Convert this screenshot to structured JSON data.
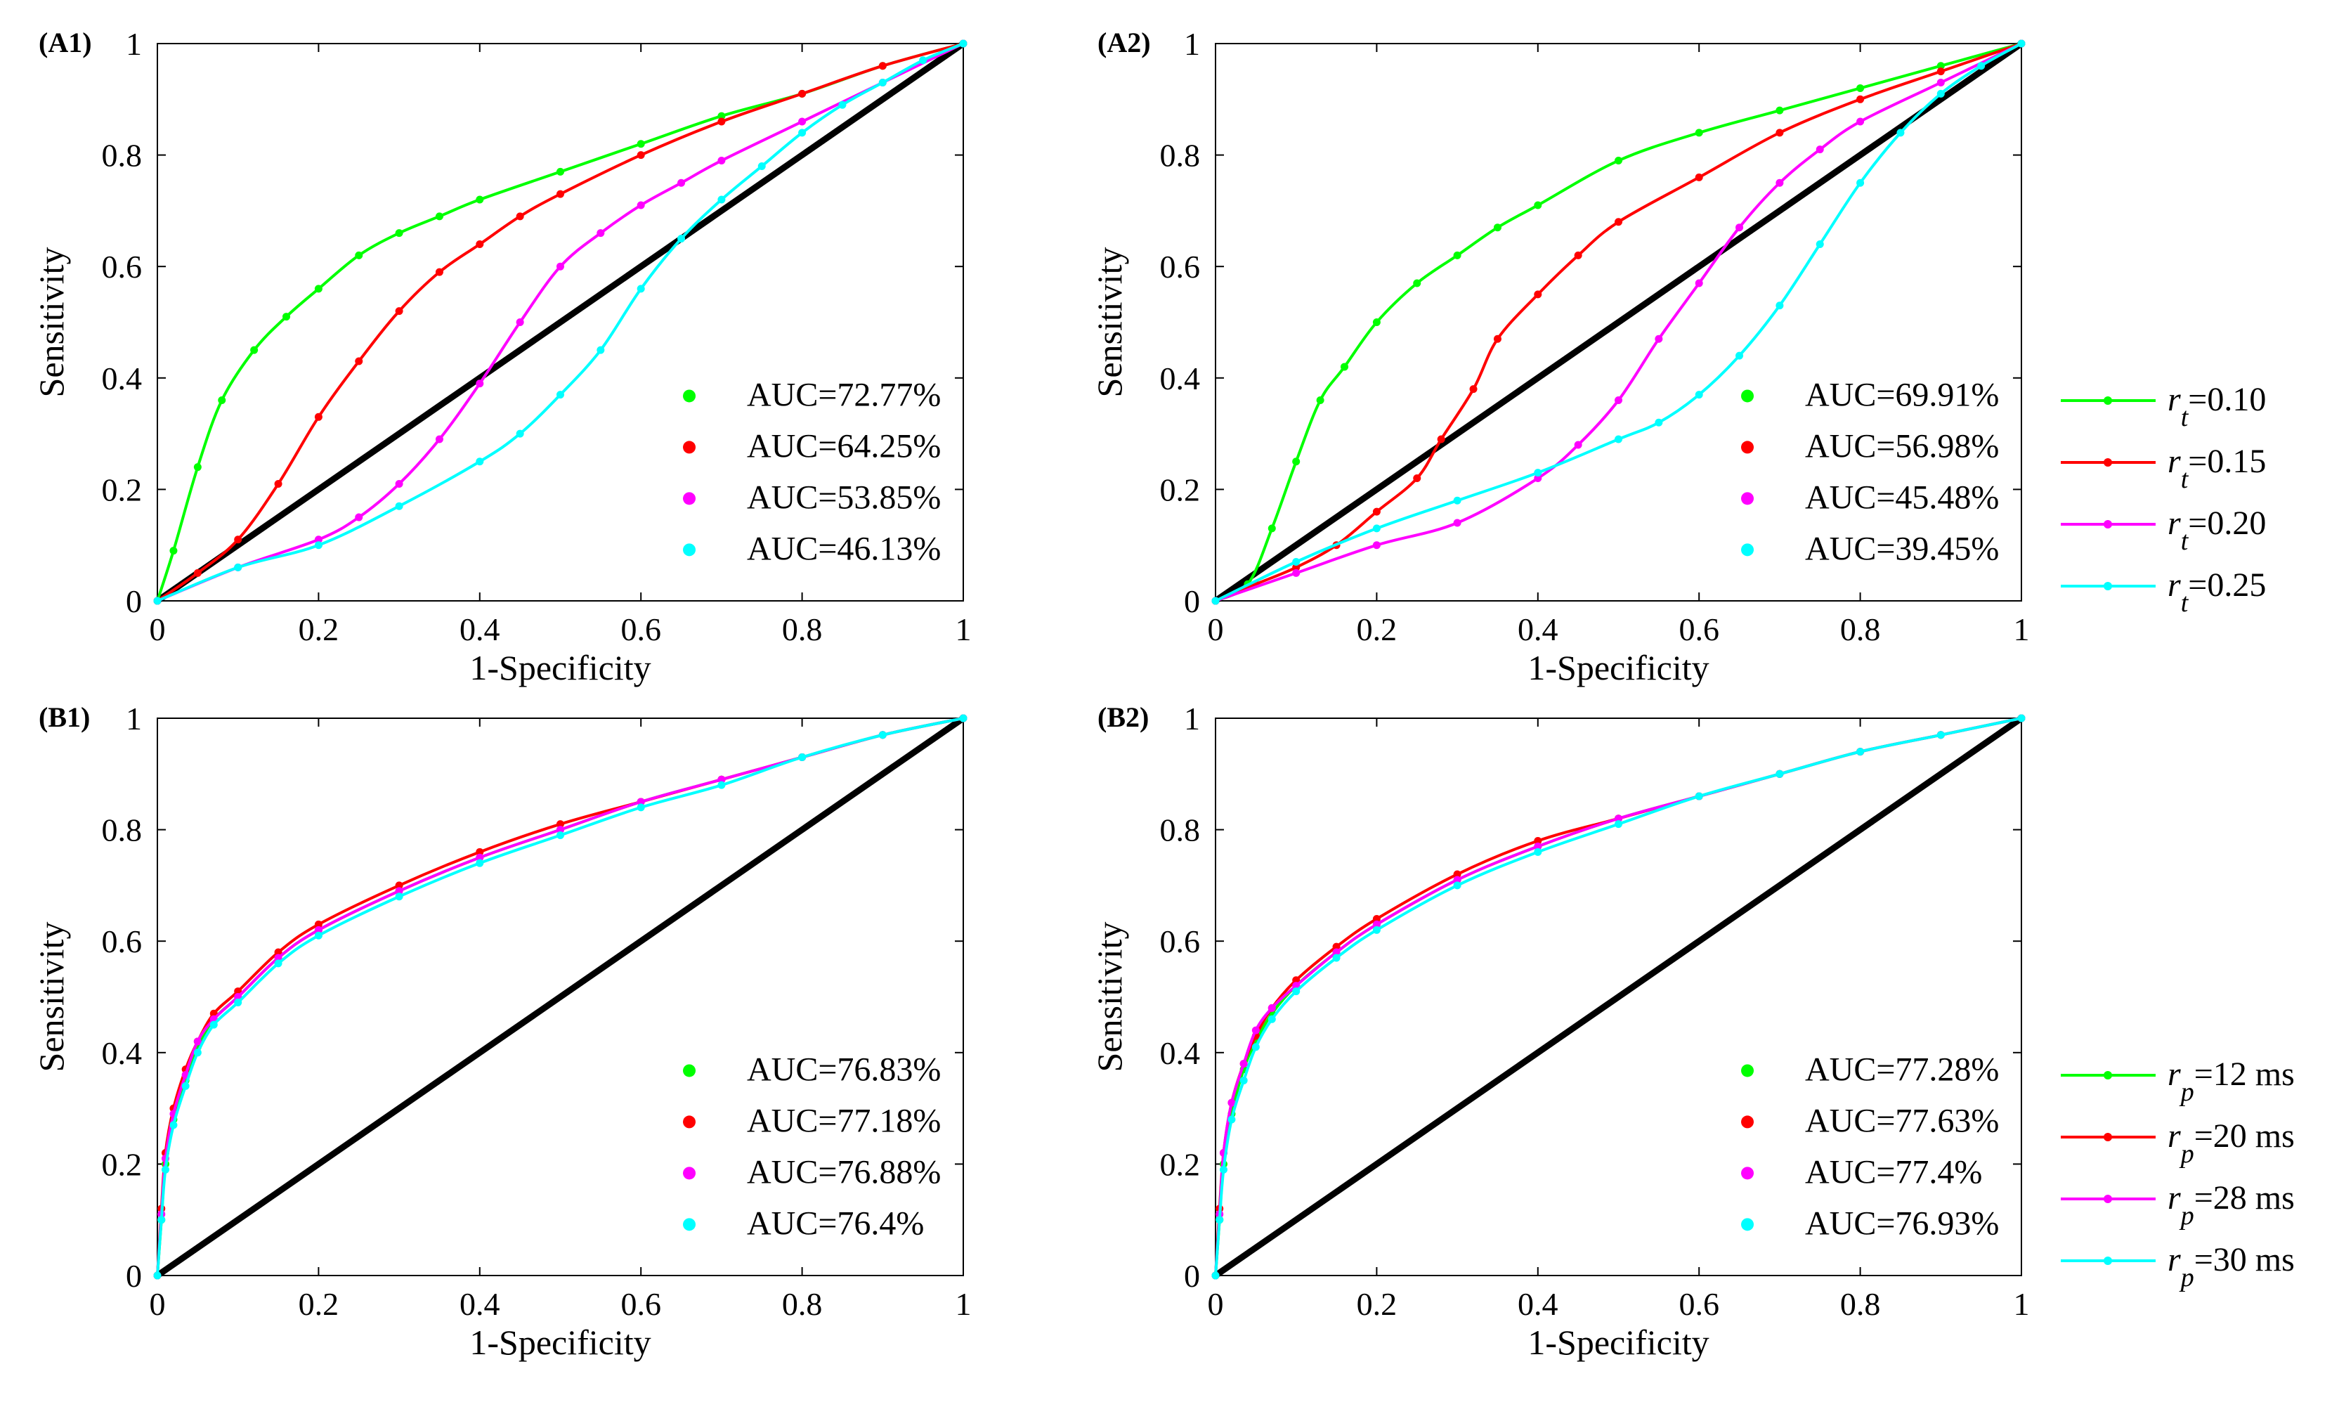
{
  "colors": {
    "green": "#00ff00",
    "red": "#ff0000",
    "magenta": "#ff00ff",
    "cyan": "#00ffff",
    "diagonal": "#000000"
  },
  "legends": {
    "rt": [
      {
        "sym": "r",
        "sub": "t",
        "text": "=0.10",
        "color": "#00ff00"
      },
      {
        "sym": "r",
        "sub": "t",
        "text": "=0.15",
        "color": "#ff0000"
      },
      {
        "sym": "r",
        "sub": "t",
        "text": "=0.20",
        "color": "#ff00ff"
      },
      {
        "sym": "r",
        "sub": "t",
        "text": "=0.25",
        "color": "#00ffff"
      }
    ],
    "rp": [
      {
        "sym": "r",
        "sub": "p",
        "text": "=12 ms",
        "color": "#00ff00"
      },
      {
        "sym": "r",
        "sub": "p",
        "text": "=20 ms",
        "color": "#ff0000"
      },
      {
        "sym": "r",
        "sub": "p",
        "text": "=28 ms",
        "color": "#ff00ff"
      },
      {
        "sym": "r",
        "sub": "p",
        "text": "=30 ms",
        "color": "#00ffff"
      }
    ]
  },
  "chart_data": [
    {
      "panel": "(A1)",
      "type": "line",
      "xlabel": "1-Specificity",
      "ylabel": "Sensitivity",
      "xlim": [
        0,
        1
      ],
      "ylim": [
        0,
        1
      ],
      "xticks": [
        "0",
        "0.2",
        "0.4",
        "0.6",
        "0.8",
        "1"
      ],
      "yticks": [
        "0",
        "0.2",
        "0.4",
        "0.6",
        "0.8",
        "1"
      ],
      "diagonal": true,
      "auc_labels": [
        "AUC=72.77%",
        "AUC=64.25%",
        "AUC=53.85%",
        "AUC=46.13%"
      ],
      "series": [
        {
          "name": "AUC=72.77%",
          "color": "#00ff00",
          "x": [
            0,
            0.02,
            0.05,
            0.08,
            0.12,
            0.16,
            0.2,
            0.25,
            0.3,
            0.35,
            0.4,
            0.5,
            0.6,
            0.7,
            0.8,
            0.9,
            1
          ],
          "y": [
            0,
            0.09,
            0.24,
            0.36,
            0.45,
            0.51,
            0.56,
            0.62,
            0.66,
            0.69,
            0.72,
            0.77,
            0.82,
            0.87,
            0.91,
            0.96,
            1
          ]
        },
        {
          "name": "AUC=64.25%",
          "color": "#ff0000",
          "x": [
            0,
            0.05,
            0.1,
            0.15,
            0.2,
            0.25,
            0.3,
            0.35,
            0.4,
            0.45,
            0.5,
            0.6,
            0.7,
            0.8,
            0.9,
            1
          ],
          "y": [
            0,
            0.05,
            0.11,
            0.21,
            0.33,
            0.43,
            0.52,
            0.59,
            0.64,
            0.69,
            0.73,
            0.8,
            0.86,
            0.91,
            0.96,
            1
          ]
        },
        {
          "name": "AUC=53.85%",
          "color": "#ff00ff",
          "x": [
            0,
            0.1,
            0.2,
            0.25,
            0.3,
            0.35,
            0.4,
            0.45,
            0.5,
            0.55,
            0.6,
            0.65,
            0.7,
            0.8,
            0.9,
            1
          ],
          "y": [
            0,
            0.06,
            0.11,
            0.15,
            0.21,
            0.29,
            0.39,
            0.5,
            0.6,
            0.66,
            0.71,
            0.75,
            0.79,
            0.86,
            0.93,
            1
          ]
        },
        {
          "name": "AUC=46.13%",
          "color": "#00ffff",
          "x": [
            0,
            0.1,
            0.2,
            0.3,
            0.4,
            0.45,
            0.5,
            0.55,
            0.6,
            0.65,
            0.7,
            0.75,
            0.8,
            0.85,
            0.9,
            0.95,
            1
          ],
          "y": [
            0,
            0.06,
            0.1,
            0.17,
            0.25,
            0.3,
            0.37,
            0.45,
            0.56,
            0.65,
            0.72,
            0.78,
            0.84,
            0.89,
            0.93,
            0.97,
            1
          ]
        }
      ]
    },
    {
      "panel": "(A2)",
      "type": "line",
      "xlabel": "1-Specificity",
      "ylabel": "Sensitivity",
      "xlim": [
        0,
        1
      ],
      "ylim": [
        0,
        1
      ],
      "xticks": [
        "0",
        "0.2",
        "0.4",
        "0.6",
        "0.8",
        "1"
      ],
      "yticks": [
        "0",
        "0.2",
        "0.4",
        "0.6",
        "0.8",
        "1"
      ],
      "diagonal": true,
      "auc_labels": [
        "AUC=69.91%",
        "AUC=56.98%",
        "AUC=45.48%",
        "AUC=39.45%"
      ],
      "series": [
        {
          "name": "AUC=69.91%",
          "color": "#00ff00",
          "x": [
            0,
            0.04,
            0.07,
            0.1,
            0.13,
            0.16,
            0.2,
            0.25,
            0.3,
            0.35,
            0.4,
            0.5,
            0.6,
            0.7,
            0.8,
            0.9,
            1
          ],
          "y": [
            0,
            0.03,
            0.13,
            0.25,
            0.36,
            0.42,
            0.5,
            0.57,
            0.62,
            0.67,
            0.71,
            0.79,
            0.84,
            0.88,
            0.92,
            0.96,
            1
          ]
        },
        {
          "name": "AUC=56.98%",
          "color": "#ff0000",
          "x": [
            0,
            0.05,
            0.1,
            0.15,
            0.2,
            0.25,
            0.28,
            0.32,
            0.35,
            0.4,
            0.45,
            0.5,
            0.6,
            0.7,
            0.8,
            0.9,
            1
          ],
          "y": [
            0,
            0.03,
            0.06,
            0.1,
            0.16,
            0.22,
            0.29,
            0.38,
            0.47,
            0.55,
            0.62,
            0.68,
            0.76,
            0.84,
            0.9,
            0.95,
            1
          ]
        },
        {
          "name": "AUC=45.48%",
          "color": "#ff00ff",
          "x": [
            0,
            0.1,
            0.2,
            0.3,
            0.4,
            0.45,
            0.5,
            0.55,
            0.6,
            0.65,
            0.7,
            0.75,
            0.8,
            0.9,
            1
          ],
          "y": [
            0,
            0.05,
            0.1,
            0.14,
            0.22,
            0.28,
            0.36,
            0.47,
            0.57,
            0.67,
            0.75,
            0.81,
            0.86,
            0.93,
            1
          ]
        },
        {
          "name": "AUC=39.45%",
          "color": "#00ffff",
          "x": [
            0,
            0.1,
            0.2,
            0.3,
            0.4,
            0.5,
            0.55,
            0.6,
            0.65,
            0.7,
            0.75,
            0.8,
            0.85,
            0.9,
            0.95,
            1
          ],
          "y": [
            0,
            0.07,
            0.13,
            0.18,
            0.23,
            0.29,
            0.32,
            0.37,
            0.44,
            0.53,
            0.64,
            0.75,
            0.84,
            0.91,
            0.96,
            1
          ]
        }
      ]
    },
    {
      "panel": "(B1)",
      "type": "line",
      "xlabel": "1-Specificity",
      "ylabel": "Sensitivity",
      "xlim": [
        0,
        1
      ],
      "ylim": [
        0,
        1
      ],
      "xticks": [
        "0",
        "0.2",
        "0.4",
        "0.6",
        "0.8",
        "1"
      ],
      "yticks": [
        "0",
        "0.2",
        "0.4",
        "0.6",
        "0.8",
        "1"
      ],
      "diagonal": true,
      "auc_labels": [
        "AUC=76.83%",
        "AUC=77.18%",
        "AUC=76.88%",
        "AUC=76.4%"
      ],
      "series": [
        {
          "name": "AUC=76.83%",
          "color": "#00ff00",
          "x": [
            0,
            0.005,
            0.01,
            0.02,
            0.035,
            0.05,
            0.07,
            0.1,
            0.15,
            0.2,
            0.3,
            0.4,
            0.5,
            0.6,
            0.7,
            0.8,
            0.9,
            1
          ],
          "y": [
            0,
            0.1,
            0.2,
            0.28,
            0.35,
            0.41,
            0.46,
            0.5,
            0.57,
            0.62,
            0.69,
            0.75,
            0.8,
            0.85,
            0.89,
            0.93,
            0.97,
            1
          ]
        },
        {
          "name": "AUC=77.18%",
          "color": "#ff0000",
          "x": [
            0,
            0.005,
            0.01,
            0.02,
            0.035,
            0.05,
            0.07,
            0.1,
            0.15,
            0.2,
            0.3,
            0.4,
            0.5,
            0.6,
            0.7,
            0.8,
            0.9,
            1
          ],
          "y": [
            0,
            0.12,
            0.22,
            0.3,
            0.37,
            0.42,
            0.47,
            0.51,
            0.58,
            0.63,
            0.7,
            0.76,
            0.81,
            0.85,
            0.89,
            0.93,
            0.97,
            1
          ]
        },
        {
          "name": "AUC=76.88%",
          "color": "#ff00ff",
          "x": [
            0,
            0.005,
            0.01,
            0.02,
            0.035,
            0.05,
            0.07,
            0.1,
            0.15,
            0.2,
            0.3,
            0.4,
            0.5,
            0.6,
            0.7,
            0.8,
            0.9,
            1
          ],
          "y": [
            0,
            0.11,
            0.21,
            0.29,
            0.36,
            0.42,
            0.46,
            0.5,
            0.57,
            0.62,
            0.69,
            0.75,
            0.8,
            0.85,
            0.89,
            0.93,
            0.97,
            1
          ]
        },
        {
          "name": "AUC=76.4%",
          "color": "#00ffff",
          "x": [
            0,
            0.005,
            0.01,
            0.02,
            0.035,
            0.05,
            0.07,
            0.1,
            0.15,
            0.2,
            0.3,
            0.4,
            0.5,
            0.6,
            0.7,
            0.8,
            0.9,
            1
          ],
          "y": [
            0,
            0.1,
            0.19,
            0.27,
            0.34,
            0.4,
            0.45,
            0.49,
            0.56,
            0.61,
            0.68,
            0.74,
            0.79,
            0.84,
            0.88,
            0.93,
            0.97,
            1
          ]
        }
      ]
    },
    {
      "panel": "(B2)",
      "type": "line",
      "xlabel": "1-Specificity",
      "ylabel": "Sensitivity",
      "xlim": [
        0,
        1
      ],
      "ylim": [
        0,
        1
      ],
      "xticks": [
        "0",
        "0.2",
        "0.4",
        "0.6",
        "0.8",
        "1"
      ],
      "yticks": [
        "0",
        "0.2",
        "0.4",
        "0.6",
        "0.8",
        "1"
      ],
      "diagonal": true,
      "auc_labels": [
        "AUC=77.28%",
        "AUC=77.63%",
        "AUC=77.4%",
        "AUC=76.93%"
      ],
      "series": [
        {
          "name": "AUC=77.28%",
          "color": "#00ff00",
          "x": [
            0,
            0.005,
            0.01,
            0.02,
            0.035,
            0.05,
            0.07,
            0.1,
            0.15,
            0.2,
            0.3,
            0.4,
            0.5,
            0.6,
            0.7,
            0.8,
            0.9,
            1
          ],
          "y": [
            0,
            0.1,
            0.2,
            0.29,
            0.37,
            0.42,
            0.47,
            0.52,
            0.58,
            0.63,
            0.71,
            0.77,
            0.82,
            0.86,
            0.9,
            0.94,
            0.97,
            1
          ]
        },
        {
          "name": "AUC=77.63%",
          "color": "#ff0000",
          "x": [
            0,
            0.005,
            0.01,
            0.02,
            0.035,
            0.05,
            0.07,
            0.1,
            0.15,
            0.2,
            0.3,
            0.4,
            0.5,
            0.6,
            0.7,
            0.8,
            0.9,
            1
          ],
          "y": [
            0,
            0.12,
            0.22,
            0.31,
            0.38,
            0.43,
            0.48,
            0.53,
            0.59,
            0.64,
            0.72,
            0.78,
            0.82,
            0.86,
            0.9,
            0.94,
            0.97,
            1
          ]
        },
        {
          "name": "AUC=77.4%",
          "color": "#ff00ff",
          "x": [
            0,
            0.005,
            0.01,
            0.02,
            0.035,
            0.05,
            0.07,
            0.1,
            0.15,
            0.2,
            0.3,
            0.4,
            0.5,
            0.6,
            0.7,
            0.8,
            0.9,
            1
          ],
          "y": [
            0,
            0.11,
            0.22,
            0.31,
            0.38,
            0.44,
            0.48,
            0.52,
            0.58,
            0.63,
            0.71,
            0.77,
            0.82,
            0.86,
            0.9,
            0.94,
            0.97,
            1
          ]
        },
        {
          "name": "AUC=76.93%",
          "color": "#00ffff",
          "x": [
            0,
            0.005,
            0.01,
            0.02,
            0.035,
            0.05,
            0.07,
            0.1,
            0.15,
            0.2,
            0.3,
            0.4,
            0.5,
            0.6,
            0.7,
            0.8,
            0.9,
            1
          ],
          "y": [
            0,
            0.1,
            0.19,
            0.28,
            0.35,
            0.41,
            0.46,
            0.51,
            0.57,
            0.62,
            0.7,
            0.76,
            0.81,
            0.86,
            0.9,
            0.94,
            0.97,
            1
          ]
        }
      ]
    }
  ]
}
